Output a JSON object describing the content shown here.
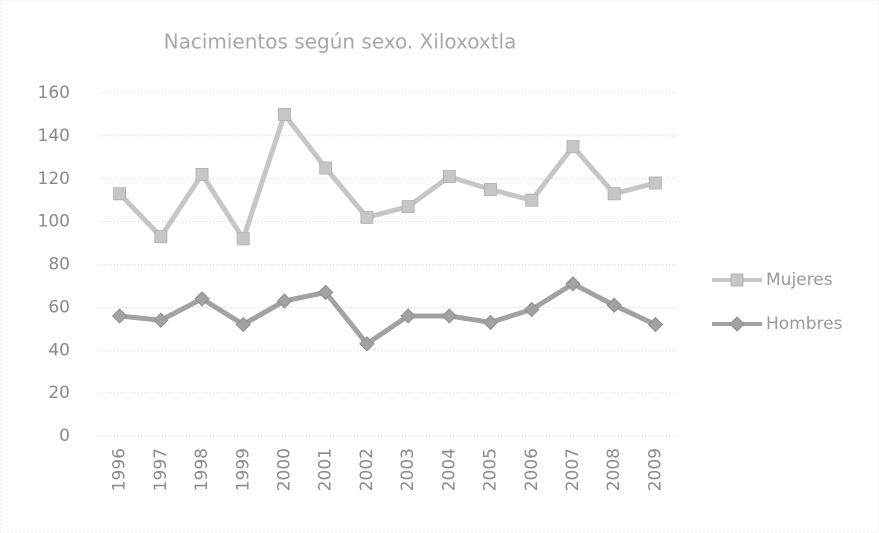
{
  "chart_data": {
    "type": "line",
    "title": "Nacimientos según sexo. Xiloxoxtla",
    "categories": [
      "1996",
      "1997",
      "1998",
      "1999",
      "2000",
      "2001",
      "2002",
      "2003",
      "2004",
      "2005",
      "2006",
      "2007",
      "2008",
      "2009"
    ],
    "series": [
      {
        "name": "Mujeres",
        "color": "#c6c6c6",
        "marker": "square",
        "values": [
          113,
          93,
          122,
          92,
          150,
          125,
          102,
          107,
          121,
          115,
          110,
          135,
          113,
          118
        ]
      },
      {
        "name": "Hombres",
        "color": "#a2a2a2",
        "marker": "diamond",
        "values": [
          56,
          54,
          64,
          52,
          63,
          67,
          43,
          56,
          56,
          53,
          59,
          71,
          61,
          52
        ]
      }
    ],
    "ylim": [
      0,
      160
    ],
    "yticks": [
      0,
      20,
      40,
      60,
      80,
      100,
      120,
      140,
      160
    ],
    "grid": true,
    "legend": "right"
  }
}
